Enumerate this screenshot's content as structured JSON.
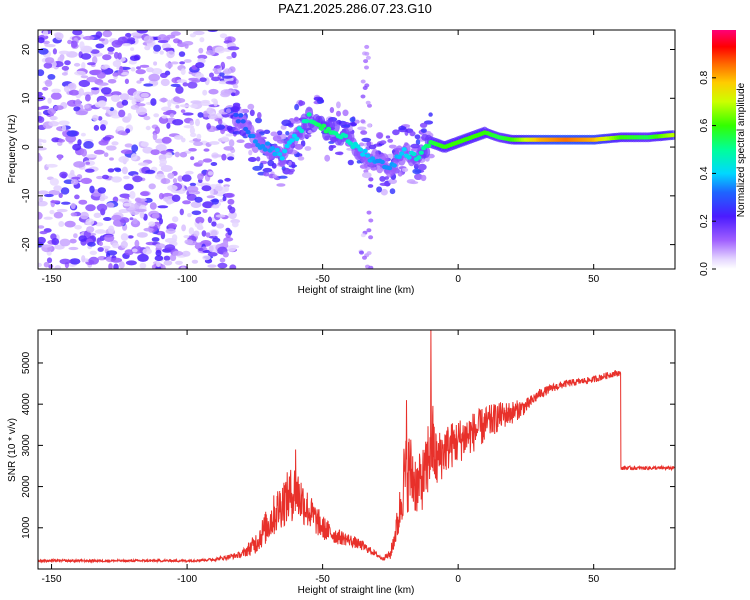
{
  "title": "PAZ1.2025.286.07.23.G10",
  "chart_data": [
    {
      "type": "heatmap",
      "name": "spectrogram",
      "title": "PAZ1.2025.286.07.23.G10",
      "xlabel": "Height of straight line (km)",
      "ylabel": "Frequency (Hz)",
      "xlim": [
        -155,
        80
      ],
      "ylim": [
        -25,
        24
      ],
      "xticks": [
        -150,
        -100,
        -50,
        0,
        50
      ],
      "yticks": [
        -20,
        -10,
        0,
        10,
        20
      ],
      "colorbar": {
        "label": "Normalized spectral amplitude",
        "range": [
          0,
          1
        ],
        "ticks": [
          "0.0",
          "0.2",
          "0.4",
          "0.6",
          "0.8"
        ],
        "tick_values": [
          0.0,
          0.2,
          0.4,
          0.6,
          0.8
        ],
        "colormap": "rainbow (white-violet-blue-cyan-green-yellow-orange-red-magenta)"
      },
      "ridge": {
        "description": "dominant frequency track",
        "x": [
          -80,
          -75,
          -70,
          -65,
          -60,
          -55,
          -50,
          -45,
          -40,
          -35,
          -30,
          -25,
          -20,
          -15,
          -10,
          -5,
          0,
          5,
          10,
          15,
          20,
          30,
          40,
          50,
          60,
          70,
          80
        ],
        "freq": [
          6,
          1,
          0,
          -2,
          2,
          6,
          4,
          3,
          1,
          -1,
          -3,
          -4,
          -1,
          -2,
          1,
          0,
          1,
          2,
          3,
          2,
          1.5,
          1.5,
          1.5,
          1.5,
          2,
          2,
          2.5
        ],
        "amplitude": [
          0.3,
          0.35,
          0.35,
          0.4,
          0.4,
          0.5,
          0.55,
          0.5,
          0.45,
          0.4,
          0.35,
          0.35,
          0.4,
          0.45,
          0.55,
          0.6,
          0.6,
          0.6,
          0.6,
          0.55,
          0.6,
          0.8,
          0.85,
          0.8,
          0.6,
          0.55,
          0.7
        ]
      }
    },
    {
      "type": "line",
      "name": "snr",
      "xlabel": "Height of straight line (km)",
      "ylabel": "SNR (10 * v/v)",
      "xlim": [
        -155,
        80
      ],
      "ylim": [
        0,
        5800
      ],
      "xticks": [
        -150,
        -100,
        -50,
        0,
        50
      ],
      "yticks": [
        1000,
        2000,
        3000,
        4000,
        5000
      ],
      "color": "#e8302a",
      "series": [
        {
          "name": "SNR",
          "x": [
            -155,
            -140,
            -120,
            -100,
            -90,
            -80,
            -75,
            -70,
            -65,
            -60,
            -55,
            -50,
            -45,
            -40,
            -35,
            -30,
            -28,
            -25,
            -22,
            -20,
            -18,
            -15,
            -12,
            -10,
            -8,
            -5,
            0,
            5,
            10,
            15,
            20,
            25,
            30,
            35,
            40,
            45,
            50,
            55,
            58,
            59,
            60,
            65,
            70,
            75,
            80
          ],
          "values": [
            200,
            200,
            200,
            200,
            230,
            350,
            600,
            1100,
            1600,
            1900,
            1400,
            1000,
            800,
            700,
            550,
            350,
            250,
            350,
            1200,
            2200,
            2400,
            2000,
            2300,
            3200,
            2600,
            2900,
            3100,
            3300,
            3500,
            3700,
            3800,
            3950,
            4250,
            4400,
            4500,
            4550,
            4600,
            4700,
            4750,
            4750,
            2450,
            2450,
            2450,
            2450,
            2450
          ],
          "noise": [
            30,
            30,
            30,
            30,
            35,
            80,
            250,
            450,
            600,
            700,
            450,
            300,
            200,
            150,
            120,
            60,
            40,
            120,
            450,
            900,
            1000,
            700,
            800,
            1200,
            700,
            600,
            550,
            500,
            450,
            350,
            280,
            180,
            120,
            100,
            90,
            80,
            80,
            80,
            80,
            80,
            45,
            45,
            45,
            45,
            45
          ],
          "peaks": [
            {
              "x": -10,
              "value": 5800
            },
            {
              "x": -19,
              "value": 4100
            },
            {
              "x": -60,
              "value": 2900
            }
          ]
        }
      ]
    }
  ]
}
